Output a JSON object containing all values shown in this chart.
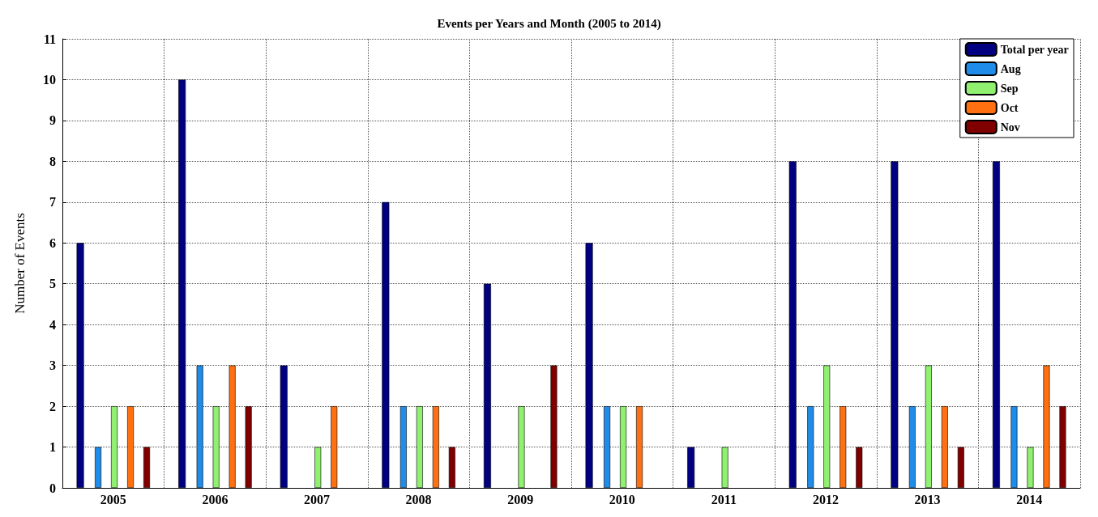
{
  "chart_data": {
    "type": "bar",
    "title": "Events per Years and Month (2005 to 2014)",
    "ylabel": "Number of Events",
    "categories": [
      "2005",
      "2006",
      "2007",
      "2008",
      "2009",
      "2010",
      "2011",
      "2012",
      "2013",
      "2014"
    ],
    "series": [
      {
        "name": "Total per year",
        "color": "#000080",
        "values": [
          6,
          10,
          3,
          7,
          5,
          6,
          1,
          8,
          8,
          8
        ]
      },
      {
        "name": "Aug",
        "color": "#1e8ce8",
        "values": [
          1,
          3,
          0,
          2,
          0,
          2,
          0,
          2,
          2,
          2
        ]
      },
      {
        "name": "Sep",
        "color": "#90f070",
        "values": [
          2,
          2,
          1,
          2,
          2,
          2,
          1,
          3,
          3,
          1
        ]
      },
      {
        "name": "Oct",
        "color": "#ff7010",
        "values": [
          2,
          3,
          2,
          2,
          0,
          2,
          0,
          2,
          2,
          3
        ]
      },
      {
        "name": "Nov",
        "color": "#800000",
        "values": [
          1,
          2,
          0,
          1,
          3,
          0,
          0,
          1,
          1,
          2
        ]
      }
    ],
    "ylim": [
      0,
      11
    ],
    "yticks": [
      0,
      1,
      2,
      3,
      4,
      5,
      6,
      7,
      8,
      9,
      10,
      11
    ],
    "grid": true,
    "legend": "top right"
  }
}
